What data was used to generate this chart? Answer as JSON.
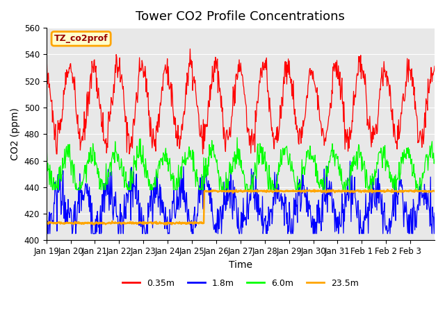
{
  "title": "Tower CO2 Profile Concentrations",
  "ylabel": "CO2 (ppm)",
  "xlabel": "Time",
  "ylim": [
    400,
    560
  ],
  "n_days": 16,
  "xtick_labels": [
    "Jan 19",
    "Jan 20",
    "Jan 21",
    "Jan 22",
    "Jan 23",
    "Jan 24",
    "Jan 25",
    "Jan 26",
    "Jan 27",
    "Jan 28",
    "Jan 29",
    "Jan 30",
    "Jan 31",
    "Feb 1",
    "Feb 2",
    "Feb 3"
  ],
  "legend_label": "TZ_co2prof",
  "series_labels": [
    "0.35m",
    "1.8m",
    "6.0m",
    "23.5m"
  ],
  "series_colors": [
    "red",
    "blue",
    "lime",
    "orange"
  ],
  "background_color": "#e8e8e8",
  "title_fontsize": 13,
  "axis_label_fontsize": 10,
  "tick_fontsize": 8.5
}
